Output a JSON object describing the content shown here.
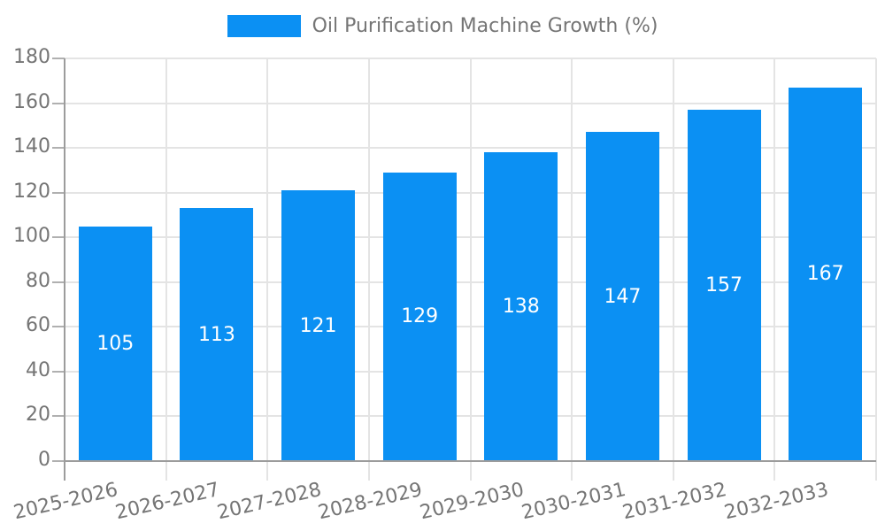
{
  "chart_data": {
    "type": "bar",
    "series_name": "Oil Purification Machine Growth (%)",
    "categories": [
      "2025-2026",
      "2026-2027",
      "2027-2028",
      "2028-2029",
      "2029-2030",
      "2030-2031",
      "2031-2032",
      "2032-2033"
    ],
    "values": [
      105,
      113,
      121,
      129,
      138,
      147,
      157,
      167
    ],
    "title": "",
    "xlabel": "",
    "ylabel": "",
    "ylim": [
      0,
      180
    ],
    "ytick_step": 20,
    "yticks": [
      0,
      20,
      40,
      60,
      80,
      100,
      120,
      140,
      160,
      180
    ],
    "grid": true,
    "legend_position": "top-center",
    "value_labels": "inside-center",
    "colors": {
      "bar": "#0b90f3",
      "value_label": "#ffffff",
      "axis_text": "#757575",
      "grid": "#e4e4e4",
      "axis_line": "#9c9c9c",
      "tick": "#b0b0b0"
    }
  }
}
